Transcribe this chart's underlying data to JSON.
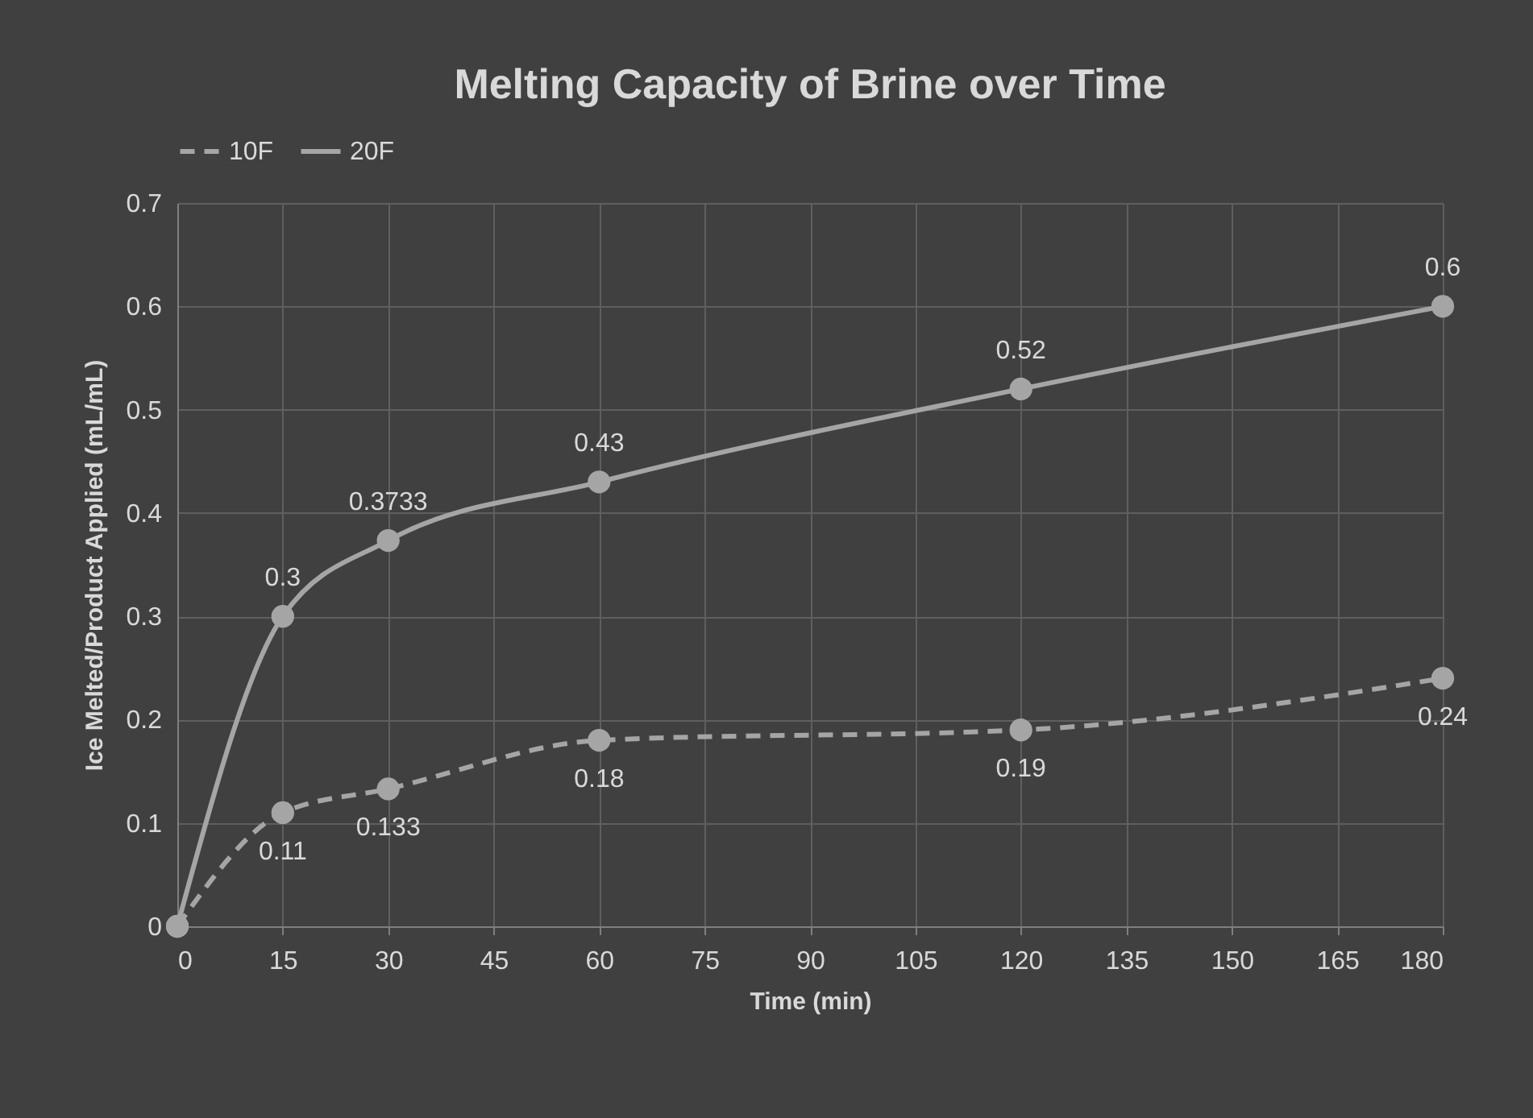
{
  "chart_data": {
    "type": "line",
    "title": "Melting Capacity of Brine over Time",
    "xlabel": "Time (min)",
    "ylabel": "Ice Melted/Product Applied (mL/mL)",
    "x": [
      0,
      15,
      30,
      60,
      120,
      180
    ],
    "series": [
      {
        "name": "10F",
        "color": "#a5a5a5",
        "line_style": "dashed",
        "values": [
          0,
          0.11,
          0.133,
          0.18,
          0.19,
          0.24
        ],
        "value_labels": [
          null,
          "0.11",
          "0.133",
          "0.18",
          "0.19",
          "0.24"
        ]
      },
      {
        "name": "20F",
        "color": "#a5a5a5",
        "line_style": "solid",
        "values": [
          0,
          0.3,
          0.3733,
          0.43,
          0.52,
          0.6
        ],
        "value_labels": [
          null,
          "0.3",
          "0.3733",
          "0.43",
          "0.52",
          "0.6"
        ]
      }
    ],
    "xlim": [
      0,
      180
    ],
    "xticks": [
      0,
      15,
      30,
      45,
      60,
      75,
      90,
      105,
      120,
      135,
      150,
      165,
      180
    ],
    "ylim": [
      0,
      0.7
    ],
    "yticks": [
      0,
      0.1,
      0.2,
      0.3,
      0.4,
      0.5,
      0.6,
      0.7
    ],
    "grid": true,
    "legend": "top",
    "marker": "circle"
  }
}
